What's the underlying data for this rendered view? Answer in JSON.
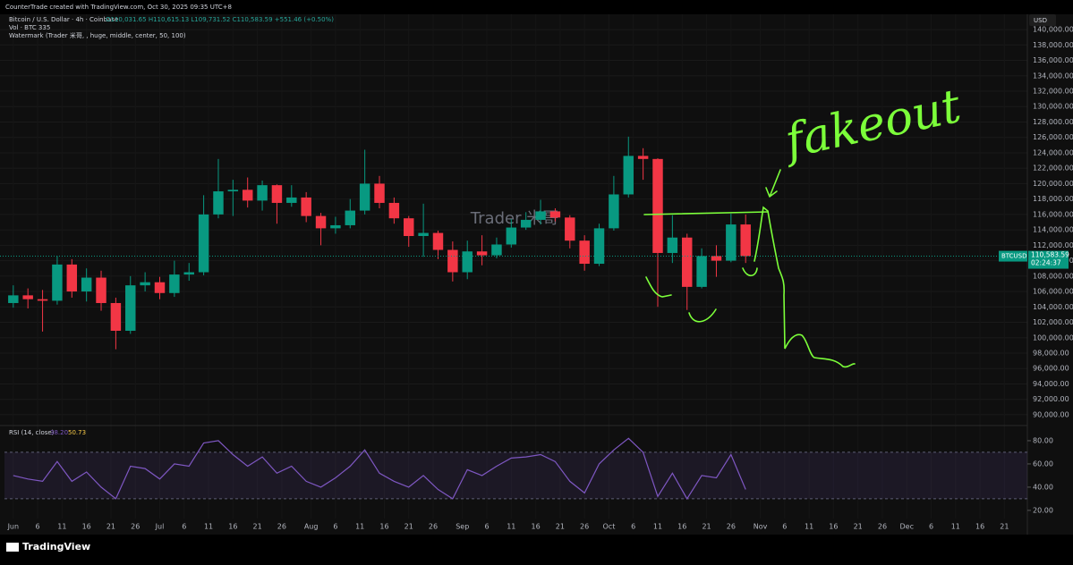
{
  "header": {
    "credit": "CounterTrade created with TradingView.com, Oct 30, 2025 09:35 UTC+8",
    "symbol_line": "Bitcoin / U.S. Dollar · 4h · Coinbase",
    "ohlc_line": "O110,031.65 H110,615.13 L109,731.52 C110,583.59 +551.46 (+0.50%)",
    "vol_line": "Vol · BTC  335",
    "watermark_line": "Watermark (Trader 米哥, , huge, middle, center, 50, 100)",
    "currency": "USD",
    "brand": "TradingView"
  },
  "chart_data": {
    "type": "candlestick",
    "watermark": "Trader 米哥",
    "annotation": "fakeout",
    "up_color": "#089981",
    "down_color": "#f23645",
    "x": [
      0,
      3,
      6,
      9,
      12,
      15,
      18,
      21,
      24,
      27,
      30,
      33,
      36,
      39,
      42,
      45,
      48,
      51,
      54,
      57,
      60,
      63,
      66,
      69,
      72,
      75,
      78,
      81,
      84,
      87,
      90,
      93,
      96,
      99,
      102,
      105,
      108,
      111,
      114,
      117,
      120,
      123,
      126,
      129,
      132,
      135,
      138,
      141,
      144,
      147,
      150
    ],
    "open": [
      104500,
      105500,
      105000,
      104800,
      109500,
      106000,
      107800,
      104500,
      100900,
      106800,
      107200,
      105800,
      108200,
      108500,
      116000,
      119000,
      119200,
      117800,
      119800,
      117500,
      118200,
      115800,
      114200,
      114600,
      116500,
      120000,
      117500,
      115500,
      113200,
      113600,
      111400,
      108500,
      111200,
      110700,
      112100,
      114300,
      115300,
      116400,
      115600,
      112600,
      109600,
      114200,
      118600,
      123600,
      123200,
      111000,
      113000,
      106600,
      110600,
      110000,
      114700
    ],
    "high": [
      106800,
      106400,
      106200,
      110600,
      110200,
      109000,
      108700,
      105200,
      108000,
      108500,
      107900,
      110000,
      109700,
      118500,
      123200,
      120500,
      120800,
      120400,
      119900,
      119800,
      118900,
      116200,
      115700,
      118000,
      124400,
      121000,
      118200,
      115800,
      117400,
      113900,
      112500,
      112600,
      113300,
      113000,
      115400,
      116300,
      117900,
      116800,
      115900,
      113300,
      114800,
      121000,
      126100,
      124600,
      123300,
      115900,
      113500,
      111600,
      112000,
      116100,
      116000
    ],
    "low": [
      103900,
      103800,
      100800,
      104300,
      105200,
      104700,
      103500,
      98500,
      100500,
      106000,
      105000,
      105300,
      107400,
      108100,
      115500,
      115800,
      116900,
      116500,
      114800,
      117000,
      115000,
      112000,
      113500,
      114200,
      116000,
      116800,
      114800,
      111800,
      110500,
      110200,
      107300,
      107600,
      109400,
      110300,
      111700,
      114000,
      114700,
      115100,
      111600,
      108700,
      109300,
      113900,
      118200,
      120500,
      104000,
      109700,
      103600,
      106400,
      107900,
      109800,
      109700
    ],
    "close": [
      105500,
      105000,
      104800,
      109500,
      106000,
      107800,
      104500,
      100900,
      106800,
      107200,
      105800,
      108200,
      108500,
      116000,
      119000,
      119200,
      117800,
      119800,
      117500,
      118200,
      115800,
      114200,
      114600,
      116500,
      120000,
      117500,
      115500,
      113200,
      113600,
      111400,
      108500,
      111200,
      110700,
      112100,
      114300,
      115300,
      116400,
      115600,
      112600,
      109600,
      114200,
      118600,
      123600,
      123200,
      111000,
      113000,
      106600,
      110600,
      110000,
      114700,
      110600
    ],
    "xlim": [
      -1.8,
      207.7
    ],
    "xticks": [
      {
        "value": 0,
        "label": "Jun"
      },
      {
        "value": 5,
        "label": "6"
      },
      {
        "value": 10,
        "label": "11"
      },
      {
        "value": 15,
        "label": "16"
      },
      {
        "value": 20,
        "label": "21"
      },
      {
        "value": 25,
        "label": "26"
      },
      {
        "value": 30,
        "label": "Jul"
      },
      {
        "value": 35,
        "label": "6"
      },
      {
        "value": 40,
        "label": "11"
      },
      {
        "value": 45,
        "label": "16"
      },
      {
        "value": 50,
        "label": "21"
      },
      {
        "value": 55,
        "label": "26"
      },
      {
        "value": 61,
        "label": "Aug"
      },
      {
        "value": 66,
        "label": "6"
      },
      {
        "value": 71,
        "label": "11"
      },
      {
        "value": 76,
        "label": "16"
      },
      {
        "value": 81,
        "label": "21"
      },
      {
        "value": 86,
        "label": "26"
      },
      {
        "value": 92,
        "label": "Sep"
      },
      {
        "value": 97,
        "label": "6"
      },
      {
        "value": 102,
        "label": "11"
      },
      {
        "value": 107,
        "label": "16"
      },
      {
        "value": 112,
        "label": "21"
      },
      {
        "value": 117,
        "label": "26"
      },
      {
        "value": 122,
        "label": "Oct"
      },
      {
        "value": 127,
        "label": "6"
      },
      {
        "value": 132,
        "label": "11"
      },
      {
        "value": 137,
        "label": "16"
      },
      {
        "value": 142,
        "label": "21"
      },
      {
        "value": 147,
        "label": "26"
      },
      {
        "value": 153,
        "label": "Nov"
      },
      {
        "value": 158,
        "label": "6"
      },
      {
        "value": 163,
        "label": "11"
      },
      {
        "value": 168,
        "label": "16"
      },
      {
        "value": 173,
        "label": "21"
      },
      {
        "value": 178,
        "label": "26"
      },
      {
        "value": 183,
        "label": "Dec"
      },
      {
        "value": 188,
        "label": "6"
      },
      {
        "value": 193,
        "label": "11"
      },
      {
        "value": 198,
        "label": "16"
      },
      {
        "value": 203,
        "label": "21"
      }
    ],
    "ylim": [
      88600,
      141980
    ],
    "yticks": [
      {
        "value": 90000,
        "label": "90,000.00"
      },
      {
        "value": 92000,
        "label": "92,000.00"
      },
      {
        "value": 94000,
        "label": "94,000.00"
      },
      {
        "value": 96000,
        "label": "96,000.00"
      },
      {
        "value": 98000,
        "label": "98,000.00"
      },
      {
        "value": 100000,
        "label": "100,000.00"
      },
      {
        "value": 102000,
        "label": "102,000.00"
      },
      {
        "value": 104000,
        "label": "104,000.00"
      },
      {
        "value": 106000,
        "label": "106,000.00"
      },
      {
        "value": 108000,
        "label": "108,000.00"
      },
      {
        "value": 110000,
        "label": "110,000.00"
      },
      {
        "value": 112000,
        "label": "112,000.00"
      },
      {
        "value": 114000,
        "label": "114,000.00"
      },
      {
        "value": 116000,
        "label": "116,000.00"
      },
      {
        "value": 118000,
        "label": "118,000.00"
      },
      {
        "value": 120000,
        "label": "120,000.00"
      },
      {
        "value": 122000,
        "label": "122,000.00"
      },
      {
        "value": 124000,
        "label": "124,000.00"
      },
      {
        "value": 126000,
        "label": "126,000.00"
      },
      {
        "value": 128000,
        "label": "128,000.00"
      },
      {
        "value": 130000,
        "label": "130,000.00"
      },
      {
        "value": 132000,
        "label": "132,000.00"
      },
      {
        "value": 134000,
        "label": "134,000.00"
      },
      {
        "value": 136000,
        "label": "136,000.00"
      },
      {
        "value": 138000,
        "label": "138,000.00"
      },
      {
        "value": 140000,
        "label": "140,000.00"
      }
    ],
    "last_price": {
      "value": 110583.59,
      "label": "110,583.59",
      "symbol": "BTCUSD",
      "countdown": "02:24:37"
    },
    "rsi": {
      "title": "RSI (14, close)",
      "readout": [
        "38.20",
        "50.73"
      ],
      "color": "#7e57c2",
      "values": [
        50,
        47,
        45,
        62,
        45,
        53,
        40,
        30,
        58,
        56,
        47,
        60,
        58,
        78,
        80,
        68,
        58,
        66,
        52,
        58,
        45,
        40,
        48,
        58,
        72,
        52,
        45,
        40,
        50,
        38,
        30,
        55,
        50,
        58,
        65,
        66,
        68,
        62,
        45,
        35,
        60,
        72,
        82,
        70,
        32,
        52,
        30,
        50,
        48,
        68,
        38
      ],
      "ylim": [
        13,
        91.5
      ],
      "yticks": [
        {
          "value": 20,
          "label": "20.00"
        },
        {
          "value": 40,
          "label": "40.00"
        },
        {
          "value": 60,
          "label": "60.00"
        },
        {
          "value": 80,
          "label": "80.00"
        }
      ],
      "band": [
        30,
        70
      ]
    }
  }
}
